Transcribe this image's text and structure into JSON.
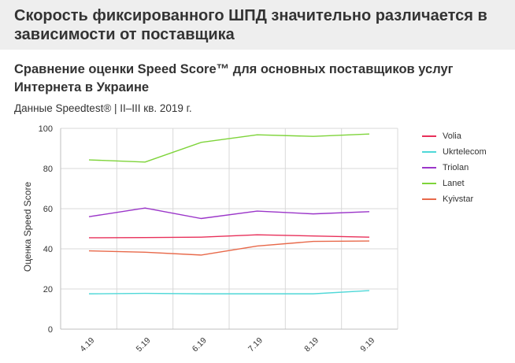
{
  "banner": {
    "title": "Скорость фиксированного ШПД значительно различается в зависимости от поставщика"
  },
  "chart_data": {
    "type": "line",
    "title": "Сравнение оценки Speed Score™ для основных поставщиков услуг Интернета в Украине",
    "subtitle": "Данные Speedtest® | II–III кв. 2019 г.",
    "xlabel": "",
    "ylabel": "Оценка Speed Score",
    "ylim": [
      0,
      100
    ],
    "yticks": [
      0,
      20,
      40,
      60,
      80,
      100
    ],
    "grid": true,
    "legend_position": "right",
    "categories": [
      "4.19",
      "5.19",
      "6.19",
      "7.19",
      "8.19",
      "9.19"
    ],
    "series": [
      {
        "name": "Volia",
        "color": "#e8305a",
        "values": [
          45.5,
          45.6,
          45.8,
          47.0,
          46.4,
          45.8
        ]
      },
      {
        "name": "Ukrtelecom",
        "color": "#4fd8d8",
        "values": [
          17.6,
          17.8,
          17.6,
          17.6,
          17.6,
          19.2
        ]
      },
      {
        "name": "Triolan",
        "color": "#9b36c9",
        "values": [
          56.0,
          60.3,
          55.1,
          58.8,
          57.4,
          58.5
        ]
      },
      {
        "name": "Lanet",
        "color": "#7ed43a",
        "values": [
          84.3,
          83.2,
          93.0,
          96.8,
          96.0,
          97.2
        ]
      },
      {
        "name": "Kyivstar",
        "color": "#e8694a",
        "values": [
          39.0,
          38.3,
          36.9,
          41.4,
          43.7,
          43.9
        ]
      }
    ]
  }
}
